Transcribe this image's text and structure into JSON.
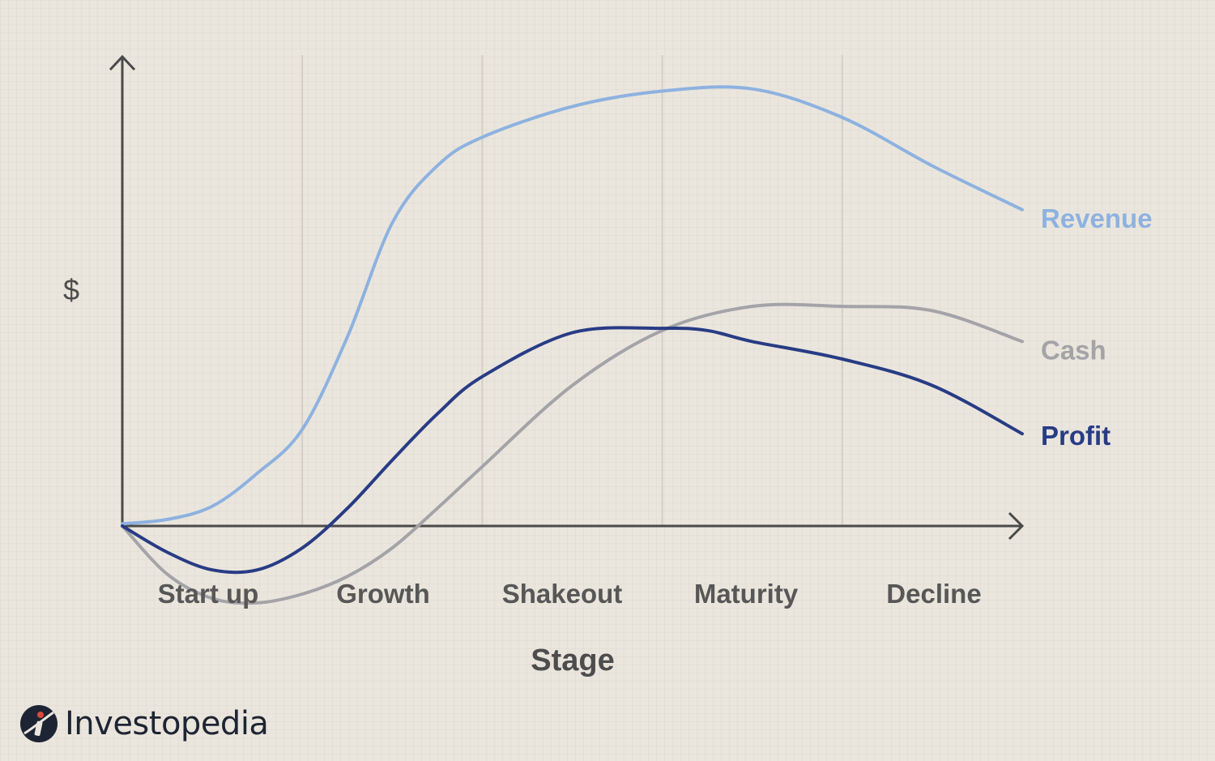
{
  "chart_data": {
    "type": "line",
    "title": "",
    "ylabel": "$",
    "xlabel": "Stage",
    "categories": [
      "Start up",
      "Growth",
      "Shakeout",
      "Maturity",
      "Decline"
    ],
    "x_range": [
      0,
      5
    ],
    "ylim": [
      -2,
      10
    ],
    "grid": "vertical stage dividers",
    "legend": "inline labels at right end of each line",
    "series": [
      {
        "name": "Revenue",
        "color": "#8db2e0",
        "x": [
          0,
          0.25,
          0.5,
          0.75,
          1.0,
          1.25,
          1.5,
          1.75,
          2.0,
          2.5,
          3.0,
          3.5,
          4.0,
          4.5,
          5.0
        ],
        "values": [
          0.05,
          0.15,
          0.45,
          1.2,
          2.2,
          4.3,
          6.9,
          8.2,
          8.85,
          9.55,
          9.9,
          9.95,
          9.3,
          8.2,
          7.2
        ]
      },
      {
        "name": "Cash",
        "color": "#a3a3a8",
        "x": [
          0,
          0.25,
          0.5,
          0.75,
          1.0,
          1.25,
          1.5,
          1.75,
          2.0,
          2.5,
          3.0,
          3.5,
          4.0,
          4.5,
          5.0
        ],
        "values": [
          0,
          -1.1,
          -1.65,
          -1.75,
          -1.55,
          -1.15,
          -0.5,
          0.4,
          1.35,
          3.2,
          4.45,
          5.0,
          5.0,
          4.9,
          4.2
        ]
      },
      {
        "name": "Profit",
        "color": "#283c85",
        "x": [
          0,
          0.25,
          0.5,
          0.75,
          1.0,
          1.25,
          1.5,
          1.75,
          2.0,
          2.5,
          3.0,
          3.25,
          3.5,
          4.0,
          4.5,
          5.0
        ],
        "values": [
          0,
          -0.6,
          -1.0,
          -1.0,
          -0.5,
          0.4,
          1.5,
          2.55,
          3.4,
          4.4,
          4.5,
          4.45,
          4.2,
          3.8,
          3.2,
          2.1
        ]
      }
    ]
  },
  "brand": {
    "name": "Investopedia",
    "logo_icon": "investopedia-i-icon",
    "logo_color": "#1d2433",
    "accent_color": "#e0483c"
  }
}
